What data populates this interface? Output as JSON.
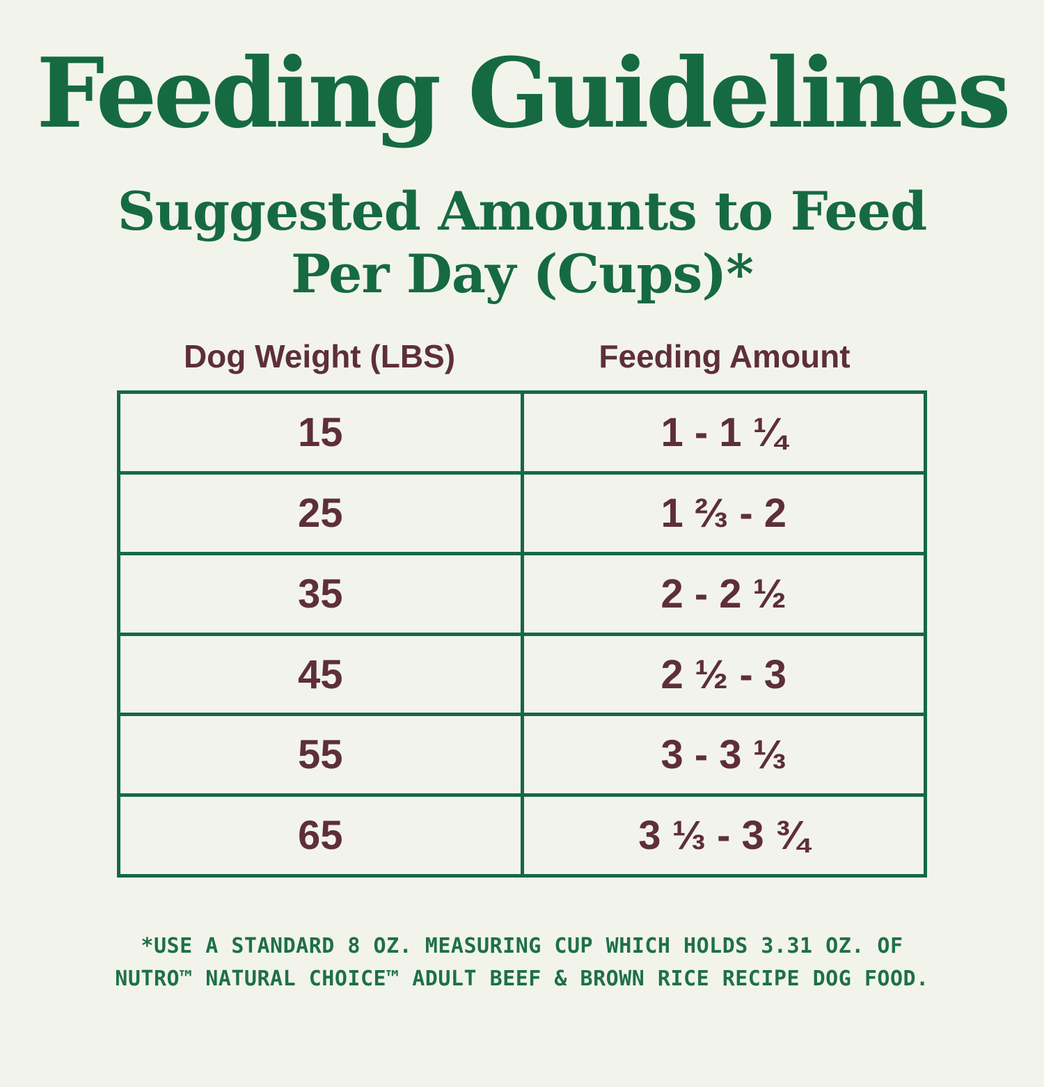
{
  "title": "Feeding Guidelines",
  "subtitle": {
    "line1": "Suggested Amounts to Feed",
    "line2": "Per Day (Cups)*"
  },
  "table": {
    "headers": {
      "weight": "Dog Weight (LBS)",
      "amount": "Feeding Amount"
    },
    "rows": [
      {
        "weight": "15",
        "amount": "1 - 1 ¼"
      },
      {
        "weight": "25",
        "amount": "1 ⅔ - 2"
      },
      {
        "weight": "35",
        "amount": "2 - 2 ½"
      },
      {
        "weight": "45",
        "amount": "2 ½ - 3"
      },
      {
        "weight": "55",
        "amount": "3 - 3 ⅓"
      },
      {
        "weight": "65",
        "amount": "3 ⅓ - 3 ¾"
      }
    ]
  },
  "footnote": {
    "line1": "*USE A STANDARD 8 OZ. MEASURING CUP WHICH HOLDS 3.31 OZ. OF",
    "line2": "NUTRO™ NATURAL CHOICE™ ADULT BEEF & BROWN RICE RECIPE DOG FOOD."
  },
  "colors": {
    "background": "#f2f4ec",
    "heading_green": "#166a41",
    "border_green": "#156945",
    "footnote_green": "#1e7048",
    "table_text_maroon": "#5e2f37"
  }
}
